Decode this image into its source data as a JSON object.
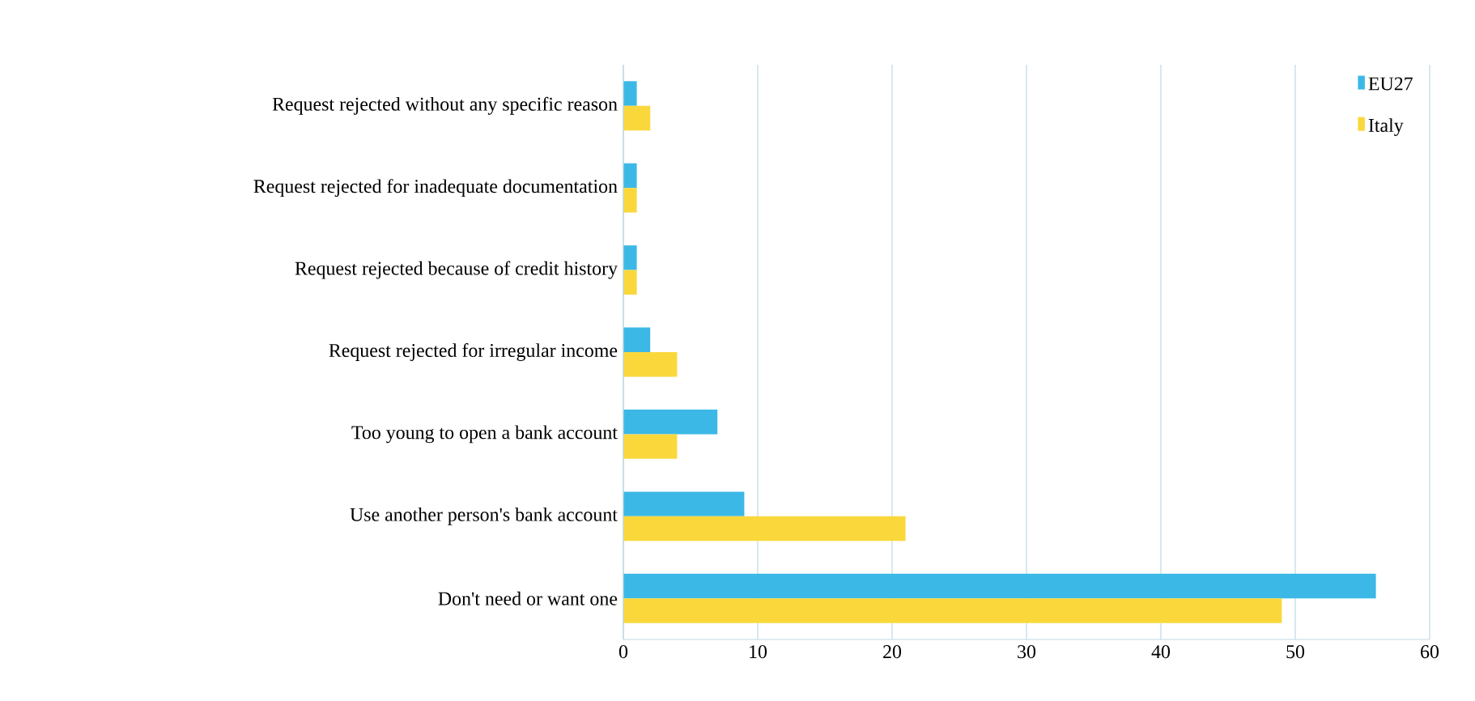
{
  "chart_data": {
    "type": "bar",
    "orientation": "horizontal",
    "categories": [
      "Request rejected without any specific reason",
      "Request rejected for inadequate documentation",
      "Request rejected because of credit history",
      "Request rejected for irregular income",
      "Too young to open a bank account",
      "Use another person's bank account",
      "Don't need or want one"
    ],
    "series": [
      {
        "name": "EU27",
        "color": "#3cb8e6",
        "values": [
          1,
          1,
          1,
          2,
          7,
          9,
          56
        ]
      },
      {
        "name": "Italy",
        "color": "#fad83c",
        "values": [
          2,
          1,
          1,
          4,
          4,
          21,
          49
        ]
      }
    ],
    "xlim": [
      0,
      60
    ],
    "xticks": [
      0,
      10,
      20,
      30,
      40,
      50,
      60
    ],
    "grid": "x",
    "legend": "top right"
  }
}
